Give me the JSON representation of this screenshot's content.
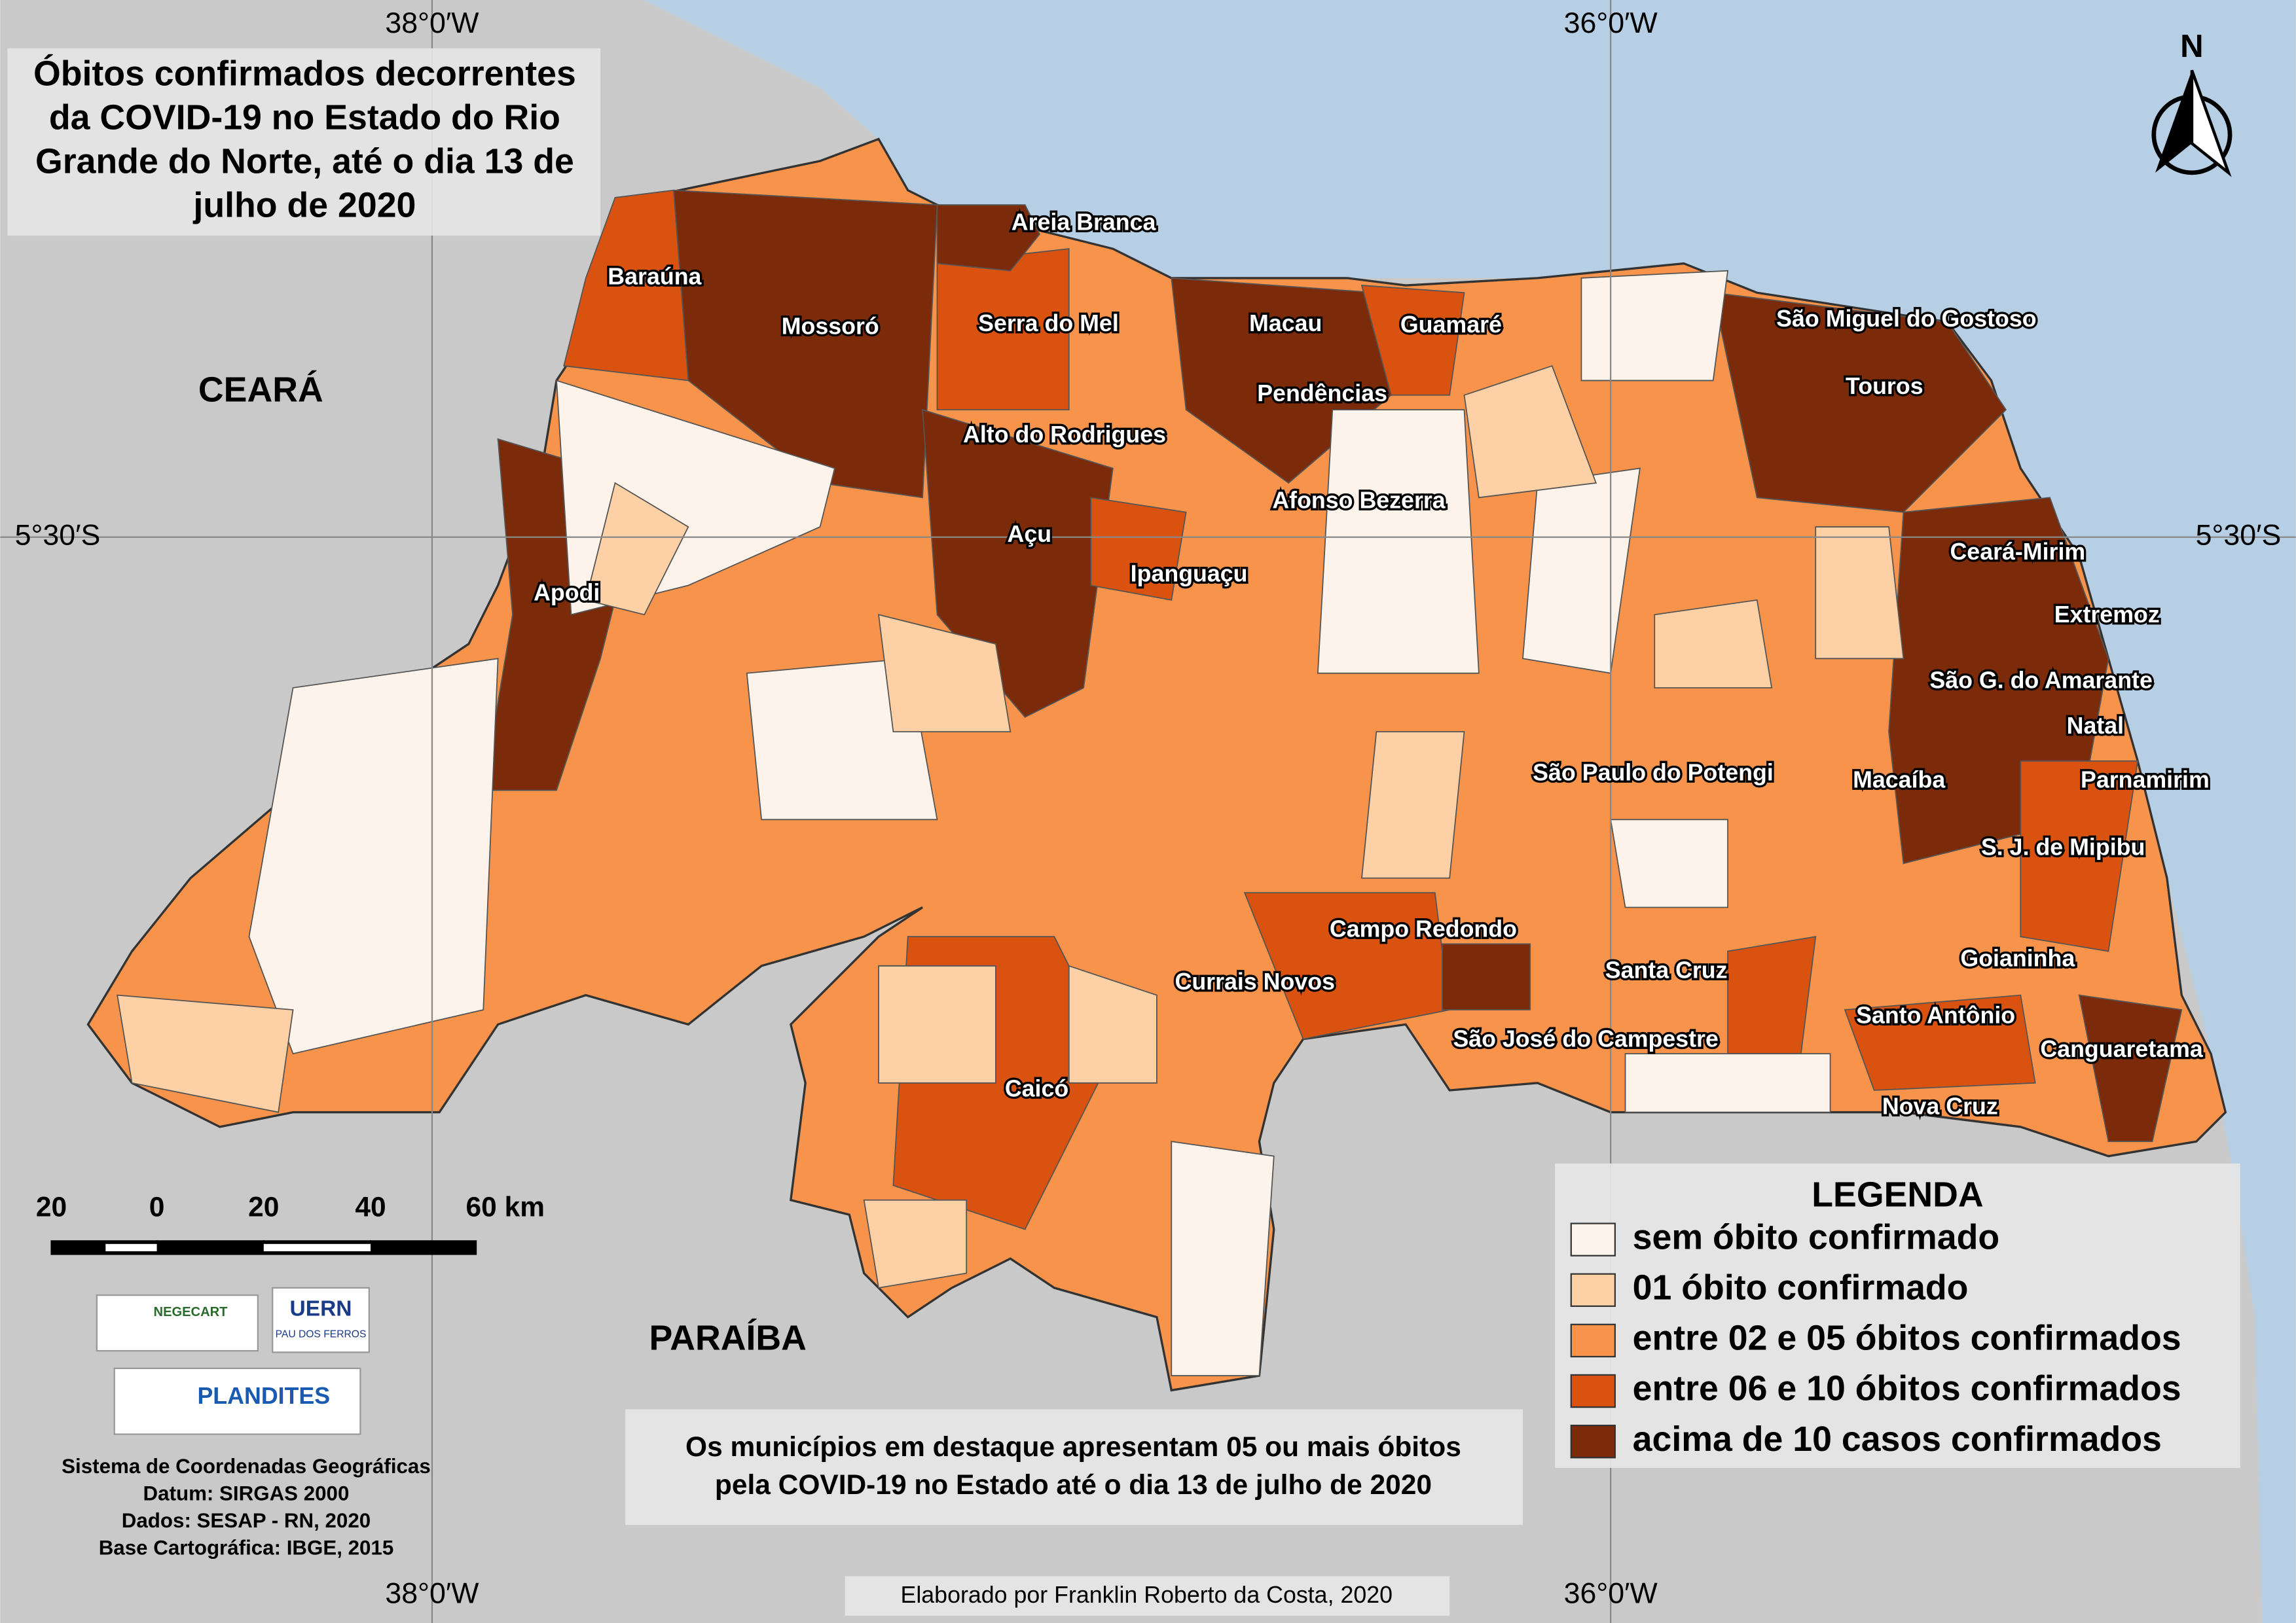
{
  "title_lines": [
    "Óbitos confirmados decorrentes",
    "da COVID-19 no Estado do Rio",
    "Grande do Norte, até o dia 13 de",
    "julho de 2020"
  ],
  "graticule": {
    "top": [
      "38°0′W",
      "36°0′W"
    ],
    "bottom": [
      "38°0′W",
      "36°0′W"
    ],
    "left": "5°30′S",
    "right": "5°30′S"
  },
  "regions": [
    "CEARÁ",
    "PARAÍBA"
  ],
  "municipalities": [
    "Areia Branca",
    "Baraúna",
    "Mossoró",
    "Serra do Mel",
    "Macau",
    "Guamaré",
    "São Miguel do Gostoso",
    "Touros",
    "Pendências",
    "Alto do Rodrigues",
    "Afonso Bezerra",
    "Açu",
    "Ipanguaçu",
    "Apodi",
    "Ceará-Mirim",
    "Extremoz",
    "São G. do Amarante",
    "Natal",
    "Macaíba",
    "Parnamirim",
    "São Paulo do Potengi",
    "S. J. de Mipibu",
    "Campo Redondo",
    "Goianinha",
    "Currais Novos",
    "Santa Cruz",
    "Santo Antônio",
    "São José do Campestre",
    "Canguaretama",
    "Caicó",
    "Nova Cruz"
  ],
  "legend": {
    "title": "LEGENDA",
    "items": [
      {
        "label": "sem óbito confirmado",
        "color": "#fdf3ea"
      },
      {
        "label": "01 óbito confirmado",
        "color": "#fdd0a5"
      },
      {
        "label": "entre 02 e 05 óbitos confirmados",
        "color": "#f7934a"
      },
      {
        "label": "entre 06 e 10 óbitos confirmados",
        "color": "#d9520f"
      },
      {
        "label": "acima de 10 casos confirmados",
        "color": "#7b2a0a"
      }
    ]
  },
  "scale_bar": [
    "20",
    "0",
    "20",
    "40",
    "60 km"
  ],
  "logos": [
    "NEGECART",
    "UERN",
    "PAU DOS FERROS",
    "PLANDITES"
  ],
  "metadata": [
    "Sistema de Coordenadas Geográficas",
    "Datum: SIRGAS 2000",
    "Dados: SESAP - RN, 2020",
    "Base Cartográfica: IBGE, 2015"
  ],
  "note": [
    "Os municípios em destaque apresentam 05 ou mais óbitos",
    "pela COVID-19 no Estado até o dia 13 de julho de 2020"
  ],
  "credit": "Elaborado por Franklin Roberto da Costa, 2020",
  "north": "N"
}
